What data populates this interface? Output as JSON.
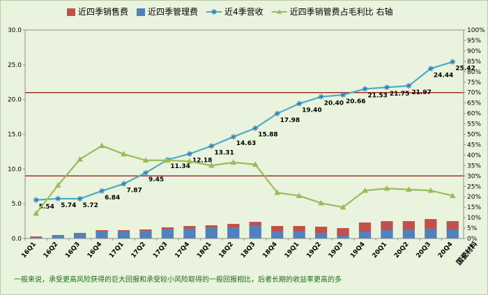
{
  "chart_data": {
    "type": "bar",
    "categories": [
      "16Q1",
      "16Q2",
      "16Q3",
      "16Q4",
      "17Q1",
      "17Q2",
      "17Q3",
      "17Q4",
      "18Q1",
      "18Q2",
      "18Q3",
      "18Q4",
      "19Q1",
      "19Q2",
      "19Q3",
      "19Q4",
      "20Q1",
      "20Q2",
      "20Q3",
      "20Q4"
    ],
    "series": [
      {
        "name": "近四季销售费",
        "kind": "bar-stack",
        "axis": "left",
        "color": "#c0504d",
        "values": [
          0.1,
          0.1,
          0.1,
          0.2,
          0.2,
          0.2,
          0.3,
          0.4,
          0.4,
          0.5,
          0.6,
          0.8,
          0.8,
          0.9,
          1.1,
          1.3,
          1.3,
          1.3,
          1.4,
          1.2
        ]
      },
      {
        "name": "近四季管理费",
        "kind": "bar-stack",
        "axis": "left",
        "color": "#4f81bd",
        "values": [
          0.2,
          0.4,
          0.7,
          1.0,
          1.0,
          1.1,
          1.3,
          1.4,
          1.5,
          1.6,
          1.8,
          1.0,
          1.0,
          0.8,
          0.4,
          1.0,
          1.2,
          1.2,
          1.4,
          1.3
        ]
      },
      {
        "name": "近4季营收",
        "kind": "line",
        "axis": "left",
        "color": "#4bacc6",
        "marker": "star",
        "values": [
          5.54,
          5.74,
          5.72,
          6.84,
          7.87,
          9.45,
          11.34,
          12.18,
          13.31,
          14.63,
          15.88,
          17.98,
          19.4,
          20.4,
          20.66,
          21.53,
          21.75,
          21.97,
          24.44,
          25.42
        ],
        "labels": [
          "5.54",
          "5.74",
          "5.72",
          "6.84",
          "7.87",
          "9.45",
          "11.34",
          "12.18",
          "13.31",
          "14.63",
          "15.88",
          "17.98",
          "19.40",
          "20.40",
          "20.66",
          "21.53",
          "21.75",
          "21.97",
          "24.44",
          "25.42"
        ]
      },
      {
        "name": "近四季销管费占毛利比 右轴",
        "kind": "line",
        "axis": "right",
        "color": "#9bbb59",
        "marker": "triangle",
        "values": [
          12,
          25.5,
          38,
          44.5,
          40.5,
          37.5,
          37.5,
          37,
          35,
          36.5,
          35.5,
          22,
          20.5,
          17,
          15,
          23,
          24,
          23.5,
          23,
          20.5
        ]
      }
    ],
    "y_left": {
      "min": 0,
      "max": 30,
      "step": 5,
      "ticks": [
        "0.0",
        "5.0",
        "10.0",
        "15.0",
        "20.0",
        "25.0",
        "30.0"
      ]
    },
    "y_right": {
      "min": 0,
      "max": 100,
      "step": 5,
      "ticks": [
        "0%",
        "5%",
        "10%",
        "15%",
        "20%",
        "25%",
        "30%",
        "35%",
        "40%",
        "45%",
        "50%",
        "55%",
        "60%",
        "65%",
        "70%",
        "75%",
        "80%",
        "85%",
        "90%",
        "95%",
        "100%"
      ]
    },
    "reference_lines": [
      {
        "axis": "right",
        "value": 70,
        "color": "#a0302a"
      },
      {
        "axis": "right",
        "value": 30,
        "color": "#a0302a"
      }
    ],
    "legend_position": "top",
    "grid": false
  },
  "source_label": "国瓷材料",
  "footnote": "一般来说，承受更高风险获得的巨大回报和承受较小风险取得的一般回报相比，后者长期的收益率更高的多"
}
